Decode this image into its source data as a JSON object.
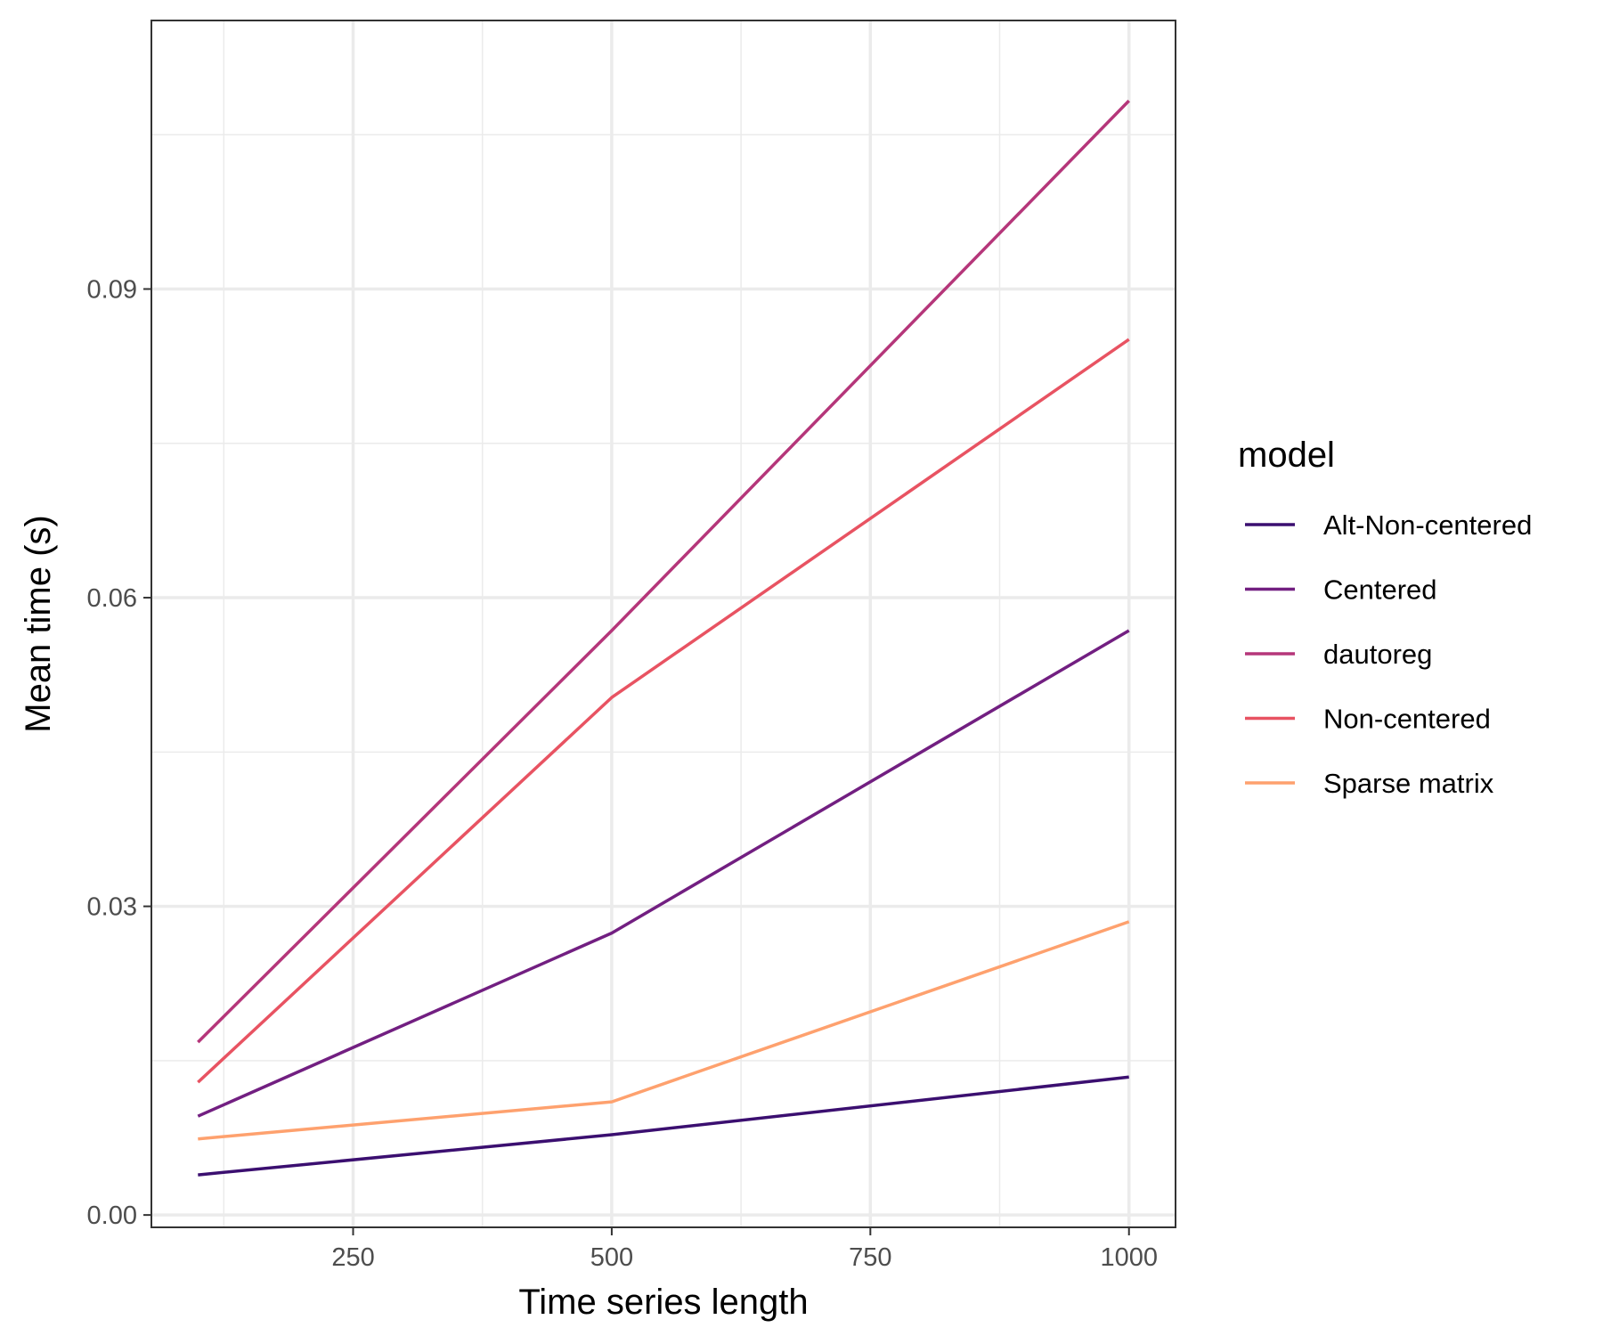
{
  "chart_data": {
    "type": "line",
    "title": "",
    "xlabel": "Time series length",
    "ylabel": "Mean time (s)",
    "x": [
      100,
      500,
      1000
    ],
    "xlim": [
      55,
      1045
    ],
    "ylim": [
      -0.0012,
      0.1161
    ],
    "x_ticks": [
      250,
      500,
      750,
      1000
    ],
    "x_tick_labels": [
      "250",
      "500",
      "750",
      "1000"
    ],
    "y_ticks": [
      0.0,
      0.03,
      0.06,
      0.09
    ],
    "y_tick_labels": [
      "0.00",
      "0.03",
      "0.06",
      "0.09"
    ],
    "x_minor_ticks": [
      125,
      375,
      625,
      875
    ],
    "y_minor_ticks": [
      0.015,
      0.045,
      0.075,
      0.105
    ],
    "grid": true,
    "legend": {
      "title": "model",
      "position": "right"
    },
    "series": [
      {
        "name": "Alt-Non-centered",
        "color": "#3b0f70",
        "values": [
          0.0039,
          0.0078,
          0.0134
        ]
      },
      {
        "name": "Centered",
        "color": "#721f81",
        "values": [
          0.0096,
          0.0274,
          0.0568
        ]
      },
      {
        "name": "dautoreg",
        "color": "#b5367a",
        "values": [
          0.0168,
          0.0568,
          0.1083
        ]
      },
      {
        "name": "Non-centered",
        "color": "#e85362",
        "values": [
          0.0129,
          0.0503,
          0.0851
        ]
      },
      {
        "name": "Sparse matrix",
        "color": "#fea16e",
        "values": [
          0.0074,
          0.011,
          0.0285
        ]
      }
    ]
  }
}
